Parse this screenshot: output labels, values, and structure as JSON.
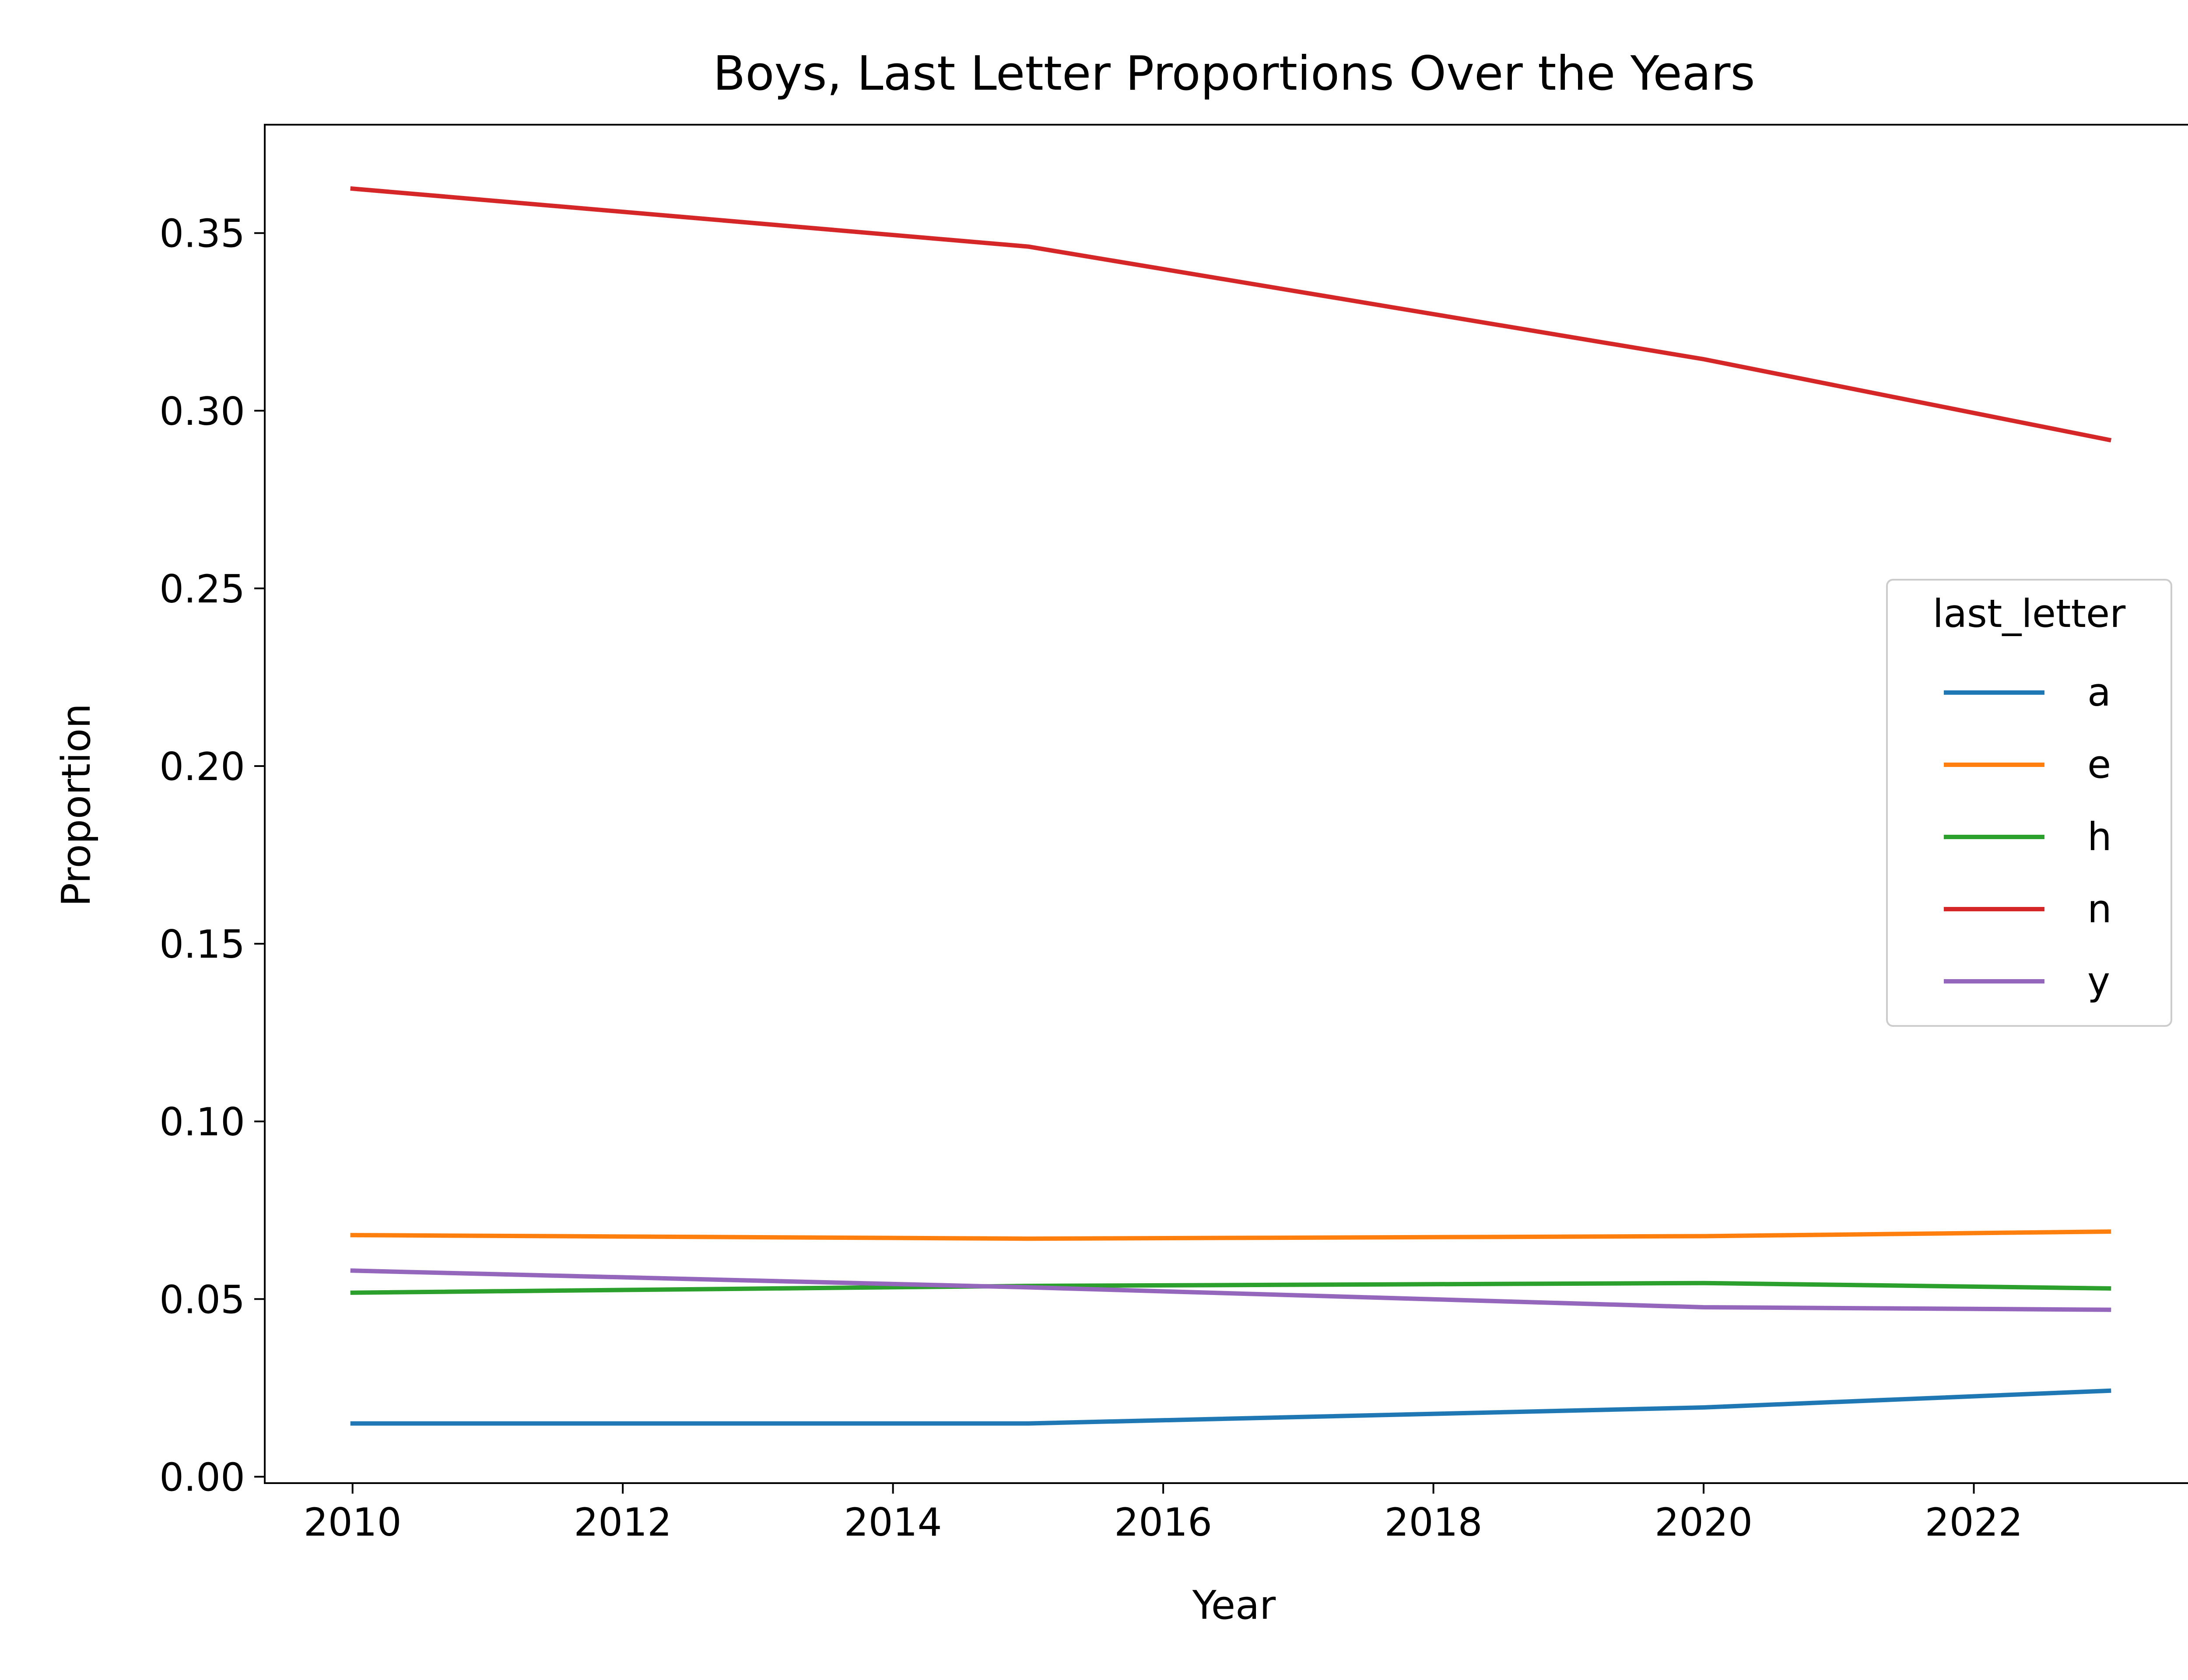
{
  "chart_data": {
    "type": "line",
    "title": "Boys, Last Letter Proportions Over the Years",
    "xlabel": "Year",
    "ylabel": "Proportion",
    "x": [
      2010,
      2015,
      2020,
      2023
    ],
    "xlim": [
      2009.35,
      2023.65
    ],
    "ylim": [
      -0.0018,
      0.3805
    ],
    "x_ticks": [
      2010,
      2012,
      2014,
      2016,
      2018,
      2020,
      2022
    ],
    "x_tick_labels": [
      "2010",
      "2012",
      "2014",
      "2016",
      "2018",
      "2020",
      "2022"
    ],
    "y_ticks": [
      0.0,
      0.05,
      0.1,
      0.15,
      0.2,
      0.25,
      0.3,
      0.35
    ],
    "y_tick_labels": [
      "0.00",
      "0.05",
      "0.10",
      "0.15",
      "0.20",
      "0.25",
      "0.30",
      "0.35"
    ],
    "grid": false,
    "legend": {
      "title": "last_letter",
      "placement": "center-right"
    },
    "series": [
      {
        "name": "a",
        "color": "#1f77b4",
        "values": [
          0.015,
          0.015,
          0.0195,
          0.0242
        ]
      },
      {
        "name": "e",
        "color": "#ff7f0e",
        "values": [
          0.068,
          0.067,
          0.0677,
          0.069
        ]
      },
      {
        "name": "h",
        "color": "#2ca02c",
        "values": [
          0.0518,
          0.0537,
          0.0545,
          0.053
        ]
      },
      {
        "name": "n",
        "color": "#d62728",
        "values": [
          0.3625,
          0.3462,
          0.3145,
          0.2918
        ]
      },
      {
        "name": "y",
        "color": "#9467bd",
        "values": [
          0.058,
          0.0533,
          0.0477,
          0.047
        ]
      }
    ]
  }
}
